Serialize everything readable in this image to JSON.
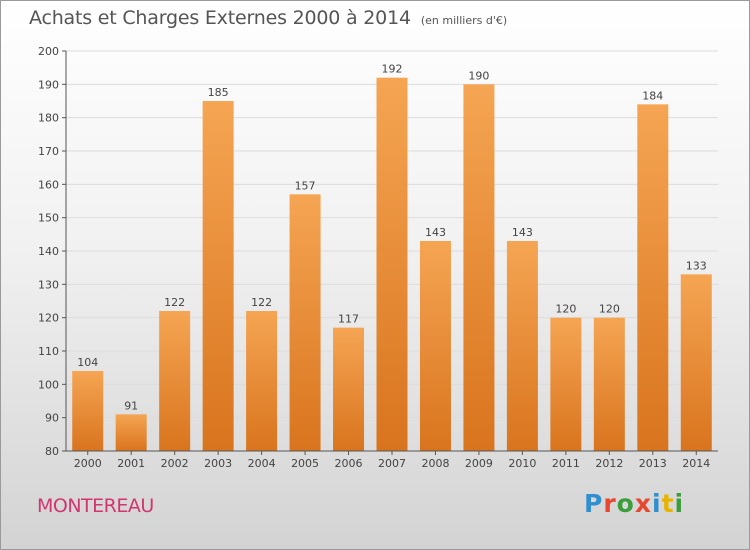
{
  "header": {
    "title": "Achats et Charges Externes 2000 à 2014",
    "subtitle": "(en milliers d'€)"
  },
  "commune": "MONTEREAU",
  "logo": {
    "text": "Proxiti",
    "letter_colors": [
      "#2f8fd0",
      "#e8472f",
      "#3b9e3b",
      "#e8472f",
      "#2f8fd0",
      "#e8b400",
      "#3b9e3b"
    ]
  },
  "chart_data": {
    "type": "bar",
    "title": "Achats et Charges Externes 2000 à 2014",
    "subtitle": "(en milliers d'€)",
    "categories": [
      "2000",
      "2001",
      "2002",
      "2003",
      "2004",
      "2005",
      "2006",
      "2007",
      "2008",
      "2009",
      "2010",
      "2011",
      "2012",
      "2013",
      "2014"
    ],
    "values": [
      104,
      91,
      122,
      185,
      122,
      157,
      117,
      192,
      143,
      190,
      143,
      120,
      120,
      184,
      133
    ],
    "ylim": [
      80,
      200
    ],
    "yticks": [
      80,
      90,
      100,
      110,
      120,
      130,
      140,
      150,
      160,
      170,
      180,
      190,
      200
    ],
    "grid": true,
    "data_labels": true,
    "colors": {
      "bar_top": "#f5a553",
      "bar_bottom": "#d9741e",
      "grid": "#dcdcdc",
      "axis": "#555555"
    }
  }
}
